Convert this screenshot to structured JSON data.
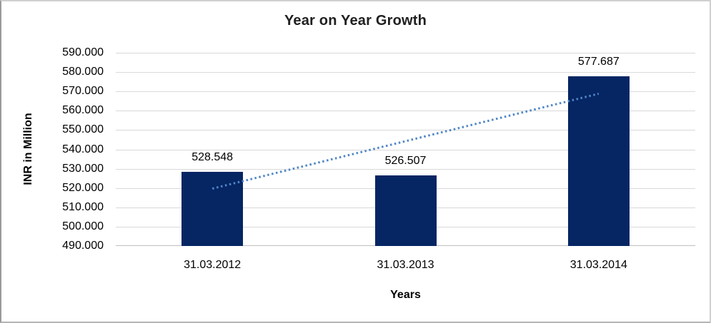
{
  "chart_data": {
    "type": "bar",
    "title": "Year on Year Growth",
    "xlabel": "Years",
    "ylabel": "INR in Million",
    "categories": [
      "31.03.2012",
      "31.03.2013",
      "31.03.2014"
    ],
    "values": [
      528.548,
      526.507,
      577.687
    ],
    "value_labels": [
      "528.548",
      "526.507",
      "577.687"
    ],
    "ylim": [
      490,
      590
    ],
    "ytick_step": 10,
    "ytick_labels": [
      "590.000",
      "580.000",
      "570.000",
      "560.000",
      "550.000",
      "540.000",
      "530.000",
      "520.000",
      "510.000",
      "500.000",
      "490.000"
    ],
    "grid": true,
    "legend_position": "none",
    "trendline": {
      "type": "linear",
      "style": "dotted",
      "start_value": 519.7,
      "end_value": 568.8
    },
    "colors": {
      "bar": "#062563",
      "gridline": "#d9d9d9",
      "axis_line": "#bfbfbf",
      "trendline": "#4f86c6",
      "text": "#000000",
      "title_text": "#202020"
    }
  }
}
